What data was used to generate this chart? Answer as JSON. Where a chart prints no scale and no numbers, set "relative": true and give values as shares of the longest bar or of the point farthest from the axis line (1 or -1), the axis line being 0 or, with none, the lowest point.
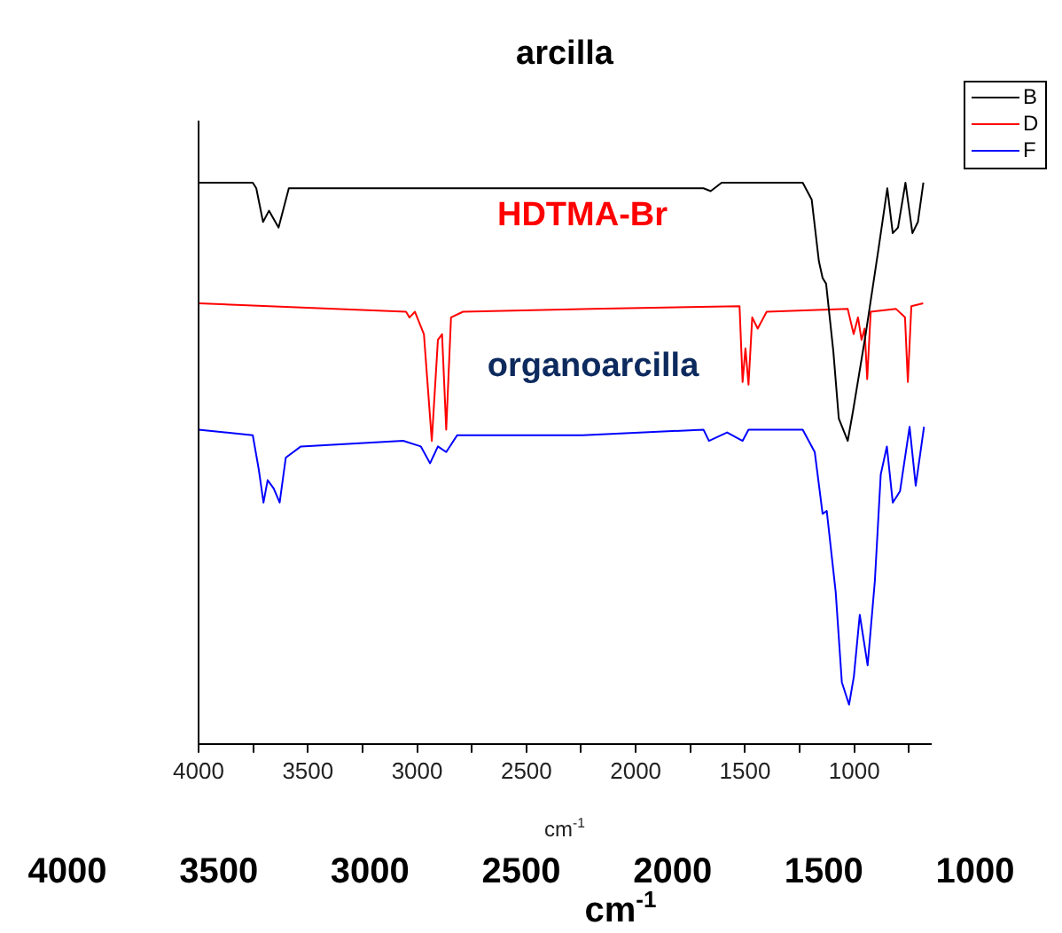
{
  "chart_data": {
    "type": "line",
    "title": "arcilla",
    "xlabel": "cm$^{-1}$",
    "x2label": "cm$^{-1}$",
    "relative": true,
    "legend": "top right",
    "marker": "none",
    "line_style": "solid",
    "xlim": [
      4000,
      650
    ],
    "xticks": [
      4000,
      {
        "value": 3750,
        "label": null
      },
      3500,
      {
        "value": 3250,
        "label": null
      },
      3000,
      {
        "value": 2750,
        "label": null
      },
      2500,
      {
        "value": 2250,
        "label": null
      },
      2000,
      {
        "value": 1750,
        "label": null
      },
      1500,
      {
        "value": 1250,
        "label": null
      },
      1000,
      {
        "value": 750,
        "label": null
      }
    ],
    "x2lim": [
      4000,
      1000
    ],
    "x2ticks": [
      4000,
      3500,
      3000,
      2500,
      2000,
      1500,
      1000
    ],
    "annotations": [
      "HDTMA-Br",
      "organoarcilla"
    ],
    "series": [
      {
        "name": "B",
        "color": "#000000",
        "x": [
          4000,
          3752,
          3736,
          3705,
          3678,
          3634,
          3587,
          3300,
          2800,
          2300,
          2185,
          1690,
          1657,
          1607,
          1236,
          1195,
          1162,
          1145,
          1129,
          1096,
          1071,
          1030,
          1005,
          948,
          890,
          849,
          824,
          800,
          766,
          734,
          709,
          684
        ],
        "values": [
          1.0,
          1.0,
          0.99,
          0.93,
          0.95,
          0.92,
          0.99,
          0.99,
          0.99,
          0.99,
          0.99,
          0.99,
          0.985,
          1.0,
          1.0,
          0.97,
          0.86,
          0.83,
          0.82,
          0.7,
          0.58,
          0.54,
          0.595,
          0.73,
          0.88,
          0.99,
          0.91,
          0.92,
          1.0,
          0.91,
          0.93,
          1.0
        ]
      },
      {
        "name": "D",
        "color": "#ff0000",
        "x": [
          4000,
          3051,
          3035,
          3010,
          2969,
          2933,
          2905,
          2886,
          2867,
          2845,
          2790,
          2200,
          1525,
          1511,
          1498,
          1484,
          1467,
          1442,
          1401,
          1030,
          1003,
          983,
          967,
          953,
          941,
          925,
          809,
          768,
          755,
          739,
          685
        ],
        "values": [
          0.785,
          0.77,
          0.76,
          0.77,
          0.73,
          0.54,
          0.72,
          0.73,
          0.56,
          0.76,
          0.77,
          0.775,
          0.78,
          0.645,
          0.705,
          0.64,
          0.76,
          0.74,
          0.77,
          0.775,
          0.73,
          0.76,
          0.72,
          0.74,
          0.65,
          0.77,
          0.775,
          0.76,
          0.645,
          0.78,
          0.785
        ]
      },
      {
        "name": "F",
        "color": "#0000ff",
        "x": [
          4000,
          3752,
          3725,
          3703,
          3684,
          3656,
          3629,
          3601,
          3532,
          3064,
          2983,
          2941,
          2905,
          2867,
          2817,
          2243,
          1690,
          1665,
          1582,
          1511,
          1484,
          1236,
          1181,
          1145,
          1126,
          1085,
          1057,
          1024,
          1002,
          975,
          939,
          906,
          879,
          851,
          824,
          791,
          747,
          719,
          681
        ],
        "values": [
          0.56,
          0.55,
          0.49,
          0.43,
          0.47,
          0.455,
          0.43,
          0.51,
          0.53,
          0.54,
          0.53,
          0.5,
          0.53,
          0.52,
          0.55,
          0.55,
          0.56,
          0.54,
          0.555,
          0.54,
          0.56,
          0.56,
          0.52,
          0.41,
          0.415,
          0.27,
          0.11,
          0.07,
          0.12,
          0.23,
          0.14,
          0.29,
          0.48,
          0.53,
          0.43,
          0.45,
          0.565,
          0.46,
          0.565
        ]
      }
    ]
  }
}
